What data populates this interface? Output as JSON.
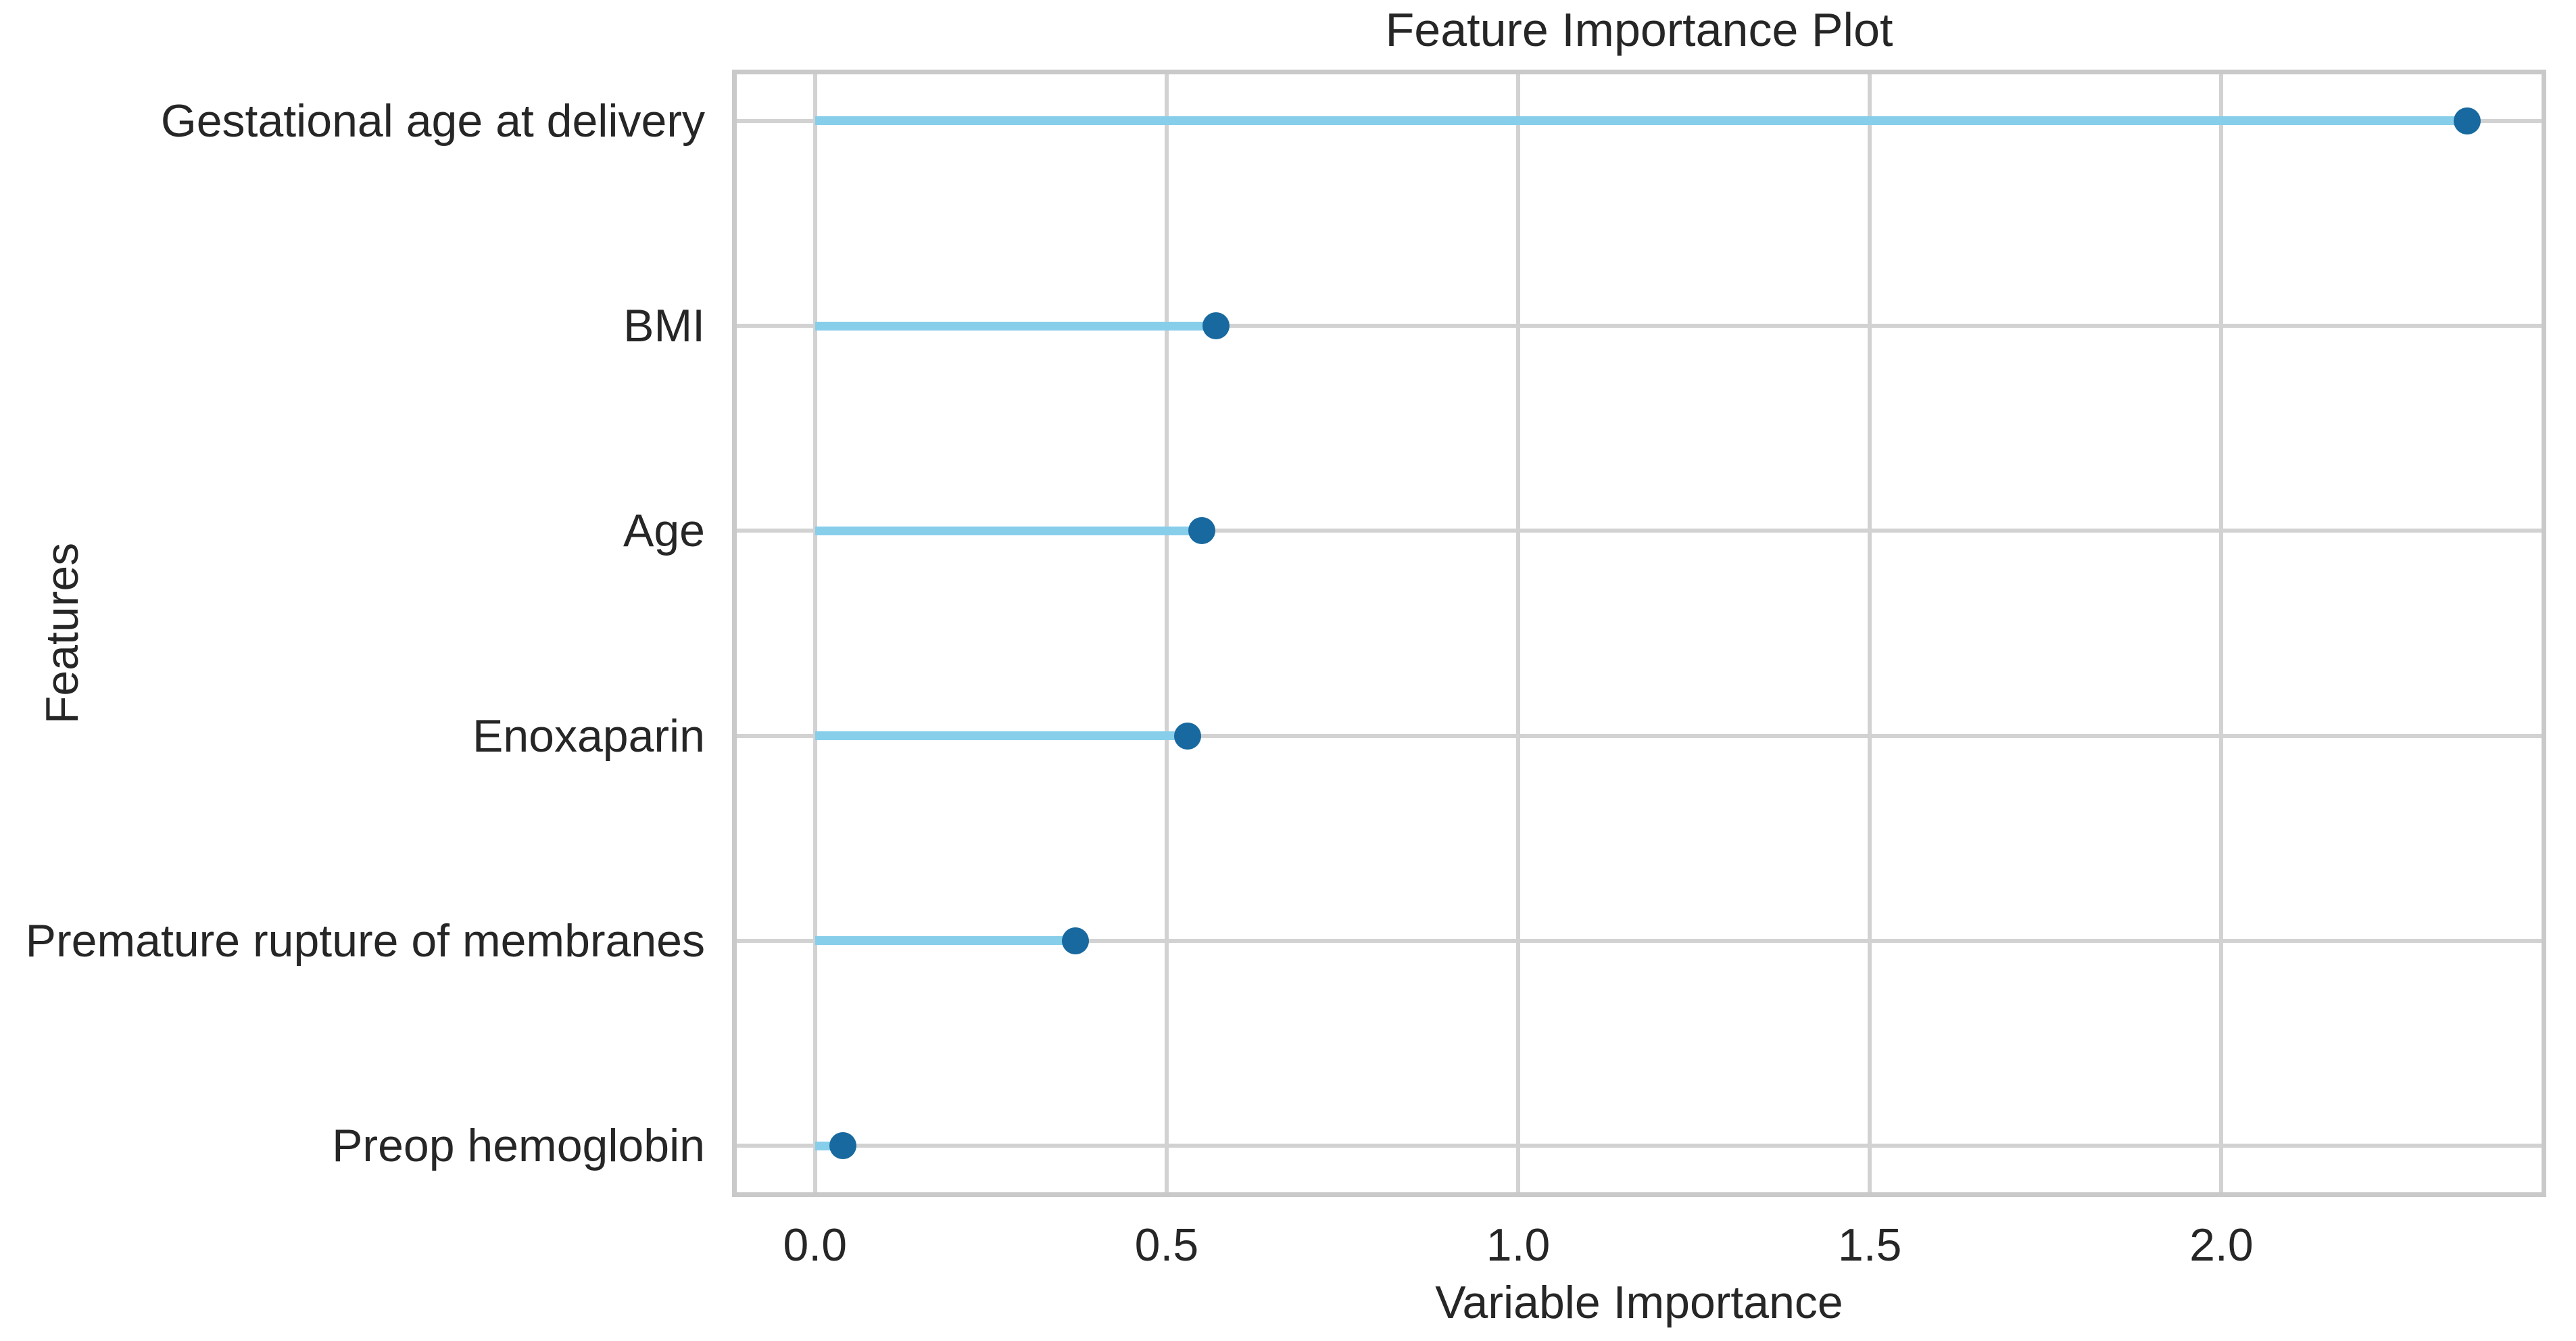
{
  "chart_data": {
    "type": "scatter",
    "variant": "horizontal-lollipop",
    "title": "Feature Importance Plot",
    "xlabel": "Variable Importance",
    "ylabel": "Features",
    "categories": [
      "Gestational age at delivery",
      "BMI",
      "Age",
      "Enoxaparin",
      "Premature rupture of membranes",
      "Preop hemoglobin"
    ],
    "values": [
      2.35,
      0.57,
      0.55,
      0.53,
      0.37,
      0.04
    ],
    "stem_start": 0.0,
    "xticks": [
      0.0,
      0.5,
      1.0,
      1.5,
      2.0
    ],
    "xtick_labels": [
      "0.0",
      "0.5",
      "1.0",
      "1.5",
      "2.0"
    ],
    "xlim": [
      -0.118,
      2.462
    ],
    "grid": true,
    "legend": false,
    "colors": {
      "marker": "#17699f",
      "stem": "#87ceeb",
      "grid": "#d2d2d2",
      "spine": "#c9c9c9",
      "text": "#262626",
      "background": "#ffffff"
    }
  }
}
